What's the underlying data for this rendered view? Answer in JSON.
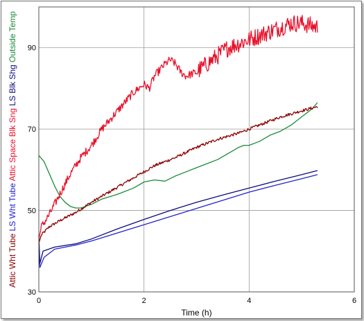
{
  "chart_data": {
    "type": "line",
    "title": "",
    "xlabel": "Time (h)",
    "xlim": [
      0,
      6
    ],
    "ylim": [
      30,
      100
    ],
    "xticks": [
      "0",
      "2",
      "4",
      "6"
    ],
    "yticks": [
      "30",
      "50",
      "70",
      "90"
    ],
    "grid": true,
    "legend_position": "left side, rotated vertical labels",
    "series": [
      {
        "name": "Attic Wht Tube",
        "color": "#8b0000",
        "noise": 0.35,
        "points": [
          [
            0,
            42
          ],
          [
            0.05,
            44
          ],
          [
            0.2,
            46
          ],
          [
            0.4,
            47.5
          ],
          [
            0.7,
            49.5
          ],
          [
            1.0,
            52
          ],
          [
            1.4,
            55
          ],
          [
            1.8,
            58
          ],
          [
            2.2,
            61
          ],
          [
            2.6,
            63
          ],
          [
            3.0,
            65.5
          ],
          [
            3.4,
            67.5
          ],
          [
            3.8,
            69
          ],
          [
            4.2,
            71
          ],
          [
            4.6,
            73
          ],
          [
            5.0,
            74.5
          ],
          [
            5.3,
            75.5
          ]
        ]
      },
      {
        "name": "LS Wht Tube",
        "color": "#2222cc",
        "noise": 0,
        "points": [
          [
            0,
            40
          ],
          [
            0.02,
            36
          ],
          [
            0.1,
            38.5
          ],
          [
            0.3,
            40.5
          ],
          [
            0.7,
            41.5
          ],
          [
            1.0,
            42.5
          ],
          [
            1.5,
            44.5
          ],
          [
            2.0,
            46.5
          ],
          [
            2.5,
            48.5
          ],
          [
            3.0,
            50.5
          ],
          [
            3.5,
            52.5
          ],
          [
            4.0,
            54.5
          ],
          [
            4.5,
            56.2
          ],
          [
            5.0,
            57.8
          ],
          [
            5.3,
            58.8
          ]
        ]
      },
      {
        "name": "Attic Space Blk Sng",
        "color": "#e8102a",
        "noise": 1.0,
        "points": [
          [
            0,
            43
          ],
          [
            0.05,
            46
          ],
          [
            0.2,
            49
          ],
          [
            0.4,
            54
          ],
          [
            0.6,
            59
          ],
          [
            0.8,
            63
          ],
          [
            1.0,
            66
          ],
          [
            1.2,
            70
          ],
          [
            1.4,
            73
          ],
          [
            1.6,
            76
          ],
          [
            1.8,
            79
          ],
          [
            2.0,
            81
          ],
          [
            2.1,
            80
          ],
          [
            2.2,
            83
          ],
          [
            2.4,
            86
          ],
          [
            2.5,
            87
          ],
          [
            2.6,
            86
          ],
          [
            2.7,
            84
          ],
          [
            2.8,
            83
          ],
          [
            3.0,
            84
          ],
          [
            3.2,
            86
          ],
          [
            3.4,
            88
          ],
          [
            3.6,
            90
          ],
          [
            3.8,
            91
          ],
          [
            4.0,
            92
          ],
          [
            4.2,
            93
          ],
          [
            4.4,
            94
          ],
          [
            4.6,
            95
          ],
          [
            4.8,
            96
          ],
          [
            5.0,
            96
          ],
          [
            5.3,
            95
          ]
        ]
      },
      {
        "name": "LS Blk Shg",
        "color": "#0b0b7a",
        "noise": 0,
        "points": [
          [
            0,
            44
          ],
          [
            0.02,
            37
          ],
          [
            0.08,
            40
          ],
          [
            0.3,
            41
          ],
          [
            0.7,
            41.8
          ],
          [
            1.0,
            43
          ],
          [
            1.5,
            45.5
          ],
          [
            2.0,
            47.8
          ],
          [
            2.5,
            50
          ],
          [
            3.0,
            52
          ],
          [
            3.5,
            53.8
          ],
          [
            4.0,
            55.5
          ],
          [
            4.5,
            57.2
          ],
          [
            5.0,
            58.8
          ],
          [
            5.3,
            59.8
          ]
        ]
      },
      {
        "name": "Outside Temp",
        "color": "#1a8a3a",
        "noise": 0,
        "points": [
          [
            0,
            63.5
          ],
          [
            0.1,
            62
          ],
          [
            0.2,
            59
          ],
          [
            0.3,
            56
          ],
          [
            0.4,
            53.5
          ],
          [
            0.5,
            52
          ],
          [
            0.6,
            51
          ],
          [
            0.7,
            50.6
          ],
          [
            0.8,
            50.6
          ],
          [
            1.0,
            51.5
          ],
          [
            1.2,
            52.8
          ],
          [
            1.5,
            54
          ],
          [
            1.8,
            55.5
          ],
          [
            2.0,
            57
          ],
          [
            2.2,
            57.5
          ],
          [
            2.4,
            57.2
          ],
          [
            2.6,
            58.5
          ],
          [
            2.8,
            59.5
          ],
          [
            3.0,
            60.5
          ],
          [
            3.2,
            61.5
          ],
          [
            3.4,
            62.5
          ],
          [
            3.6,
            64
          ],
          [
            3.8,
            65.5
          ],
          [
            3.9,
            66
          ],
          [
            4.0,
            66
          ],
          [
            4.2,
            67
          ],
          [
            4.4,
            68.5
          ],
          [
            4.6,
            69.5
          ],
          [
            4.8,
            71
          ],
          [
            4.9,
            72
          ],
          [
            5.0,
            73
          ],
          [
            5.2,
            75
          ],
          [
            5.3,
            76.5
          ]
        ]
      }
    ]
  }
}
